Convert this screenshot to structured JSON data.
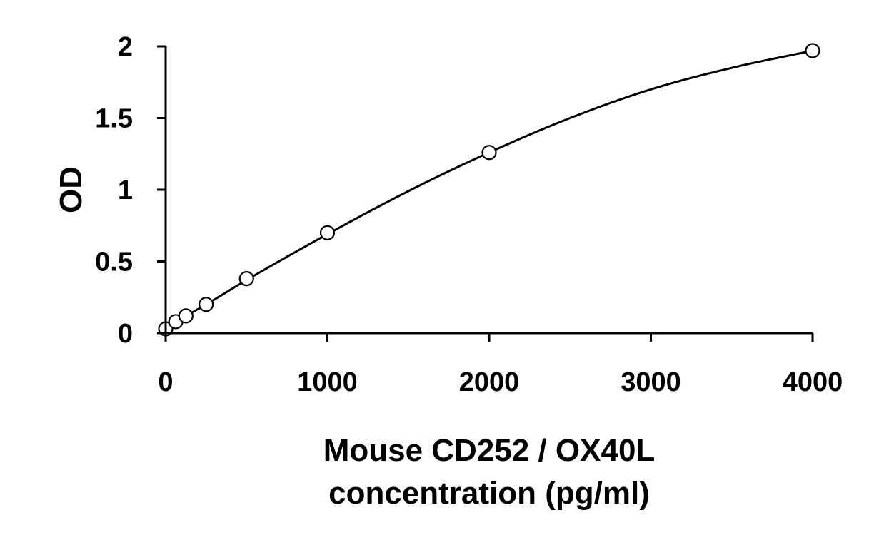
{
  "chart_data": {
    "type": "scatter",
    "title": "",
    "xlabel_lines": [
      "Mouse CD252 / OX40L",
      "concentration (pg/ml)"
    ],
    "ylabel": "OD",
    "xlim": [
      0,
      4000
    ],
    "ylim": [
      0,
      2
    ],
    "x_ticks": [
      0,
      1000,
      2000,
      3000,
      4000
    ],
    "x_tick_labels": [
      "0",
      "1000",
      "2000",
      "3000",
      "4000"
    ],
    "y_ticks": [
      0,
      0.5,
      1,
      1.5,
      2
    ],
    "y_tick_labels": [
      "0",
      "0.5",
      "1",
      "1.5",
      "2"
    ],
    "grid": false,
    "legend": "none",
    "series": [
      {
        "marker": "open-circle",
        "x": [
          0,
          62.5,
          125,
          250,
          500,
          1000,
          2000,
          4000
        ],
        "y": [
          0.03,
          0.08,
          0.12,
          0.2,
          0.38,
          0.7,
          1.26,
          1.97
        ]
      }
    ],
    "fit_curve": {
      "style": "smooth line",
      "x": [
        0,
        62.5,
        125,
        250,
        500,
        1000,
        1500,
        2000,
        2500,
        3000,
        3500,
        4000
      ],
      "y": [
        0.03,
        0.08,
        0.12,
        0.2,
        0.37,
        0.69,
        0.99,
        1.26,
        1.5,
        1.7,
        1.85,
        1.97
      ]
    },
    "colors": {
      "axis": "#000000",
      "curve": "#000000",
      "marker_stroke": "#000000",
      "marker_fill": "#ffffff",
      "background": "#ffffff"
    }
  }
}
